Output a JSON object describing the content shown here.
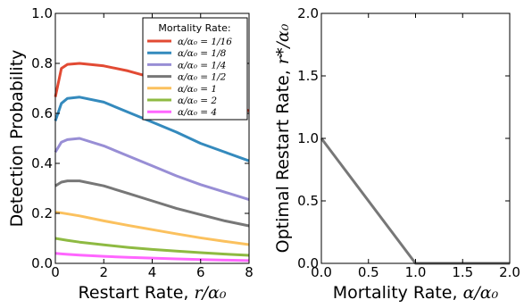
{
  "chart_data": [
    {
      "type": "line",
      "xlabel": "Restart Rate, r/α₀",
      "ylabel": "Detection Probability",
      "xlim": [
        0,
        8
      ],
      "ylim": [
        0,
        1.0
      ],
      "xticks": [
        "0",
        "2",
        "4",
        "6",
        "8"
      ],
      "yticks": [
        "0.0",
        "0.2",
        "0.4",
        "0.6",
        "0.8",
        "1.0"
      ],
      "grid": false,
      "legend": {
        "title": "Mortality Rate:",
        "placement": "top-right"
      },
      "x": [
        0,
        0.25,
        0.5,
        1,
        2,
        3,
        4,
        5,
        6,
        7,
        8
      ],
      "series": [
        {
          "name": "α/α₀ = 1/16",
          "color": "#e24a33",
          "values": [
            0.666,
            0.78,
            0.796,
            0.8,
            0.79,
            0.77,
            0.743,
            0.71,
            0.68,
            0.645,
            0.61
          ]
        },
        {
          "name": "α/α₀ = 1/8",
          "color": "#348abd",
          "values": [
            0.57,
            0.64,
            0.66,
            0.665,
            0.645,
            0.605,
            0.565,
            0.525,
            0.48,
            0.445,
            0.41
          ]
        },
        {
          "name": "α/α₀ = 1/4",
          "color": "#988ed5",
          "values": [
            0.445,
            0.485,
            0.495,
            0.5,
            0.47,
            0.43,
            0.39,
            0.35,
            0.315,
            0.285,
            0.255
          ]
        },
        {
          "name": "α/α₀ = 1/2",
          "color": "#777777",
          "values": [
            0.31,
            0.325,
            0.33,
            0.33,
            0.31,
            0.28,
            0.25,
            0.22,
            0.195,
            0.17,
            0.15
          ]
        },
        {
          "name": "α/α₀ = 1",
          "color": "#fbc15e",
          "values": [
            0.205,
            0.202,
            0.198,
            0.19,
            0.17,
            0.152,
            0.135,
            0.118,
            0.102,
            0.088,
            0.075
          ]
        },
        {
          "name": "α/α₀ = 2",
          "color": "#8eba42",
          "values": [
            0.1,
            0.096,
            0.092,
            0.085,
            0.074,
            0.064,
            0.056,
            0.049,
            0.043,
            0.037,
            0.032
          ]
        },
        {
          "name": "α/α₀ = 4",
          "color": "#ff66ff",
          "values": [
            0.04,
            0.038,
            0.036,
            0.033,
            0.028,
            0.024,
            0.021,
            0.018,
            0.015,
            0.013,
            0.011
          ]
        }
      ]
    },
    {
      "type": "line",
      "xlabel": "Mortality Rate, α/α₀",
      "ylabel": "Optimal Restart Rate, r*/α₀",
      "xlim": [
        0,
        2.0
      ],
      "ylim": [
        0,
        2.0
      ],
      "xticks": [
        "0.0",
        "0.5",
        "1.0",
        "1.5",
        "2.0"
      ],
      "yticks": [
        "0.0",
        "0.5",
        "1.0",
        "1.5",
        "2.0"
      ],
      "grid": false,
      "x": [
        0,
        1.0,
        2.0
      ],
      "series": [
        {
          "color": "#777777",
          "values": [
            1.0,
            0.0,
            0.0
          ]
        }
      ]
    }
  ]
}
